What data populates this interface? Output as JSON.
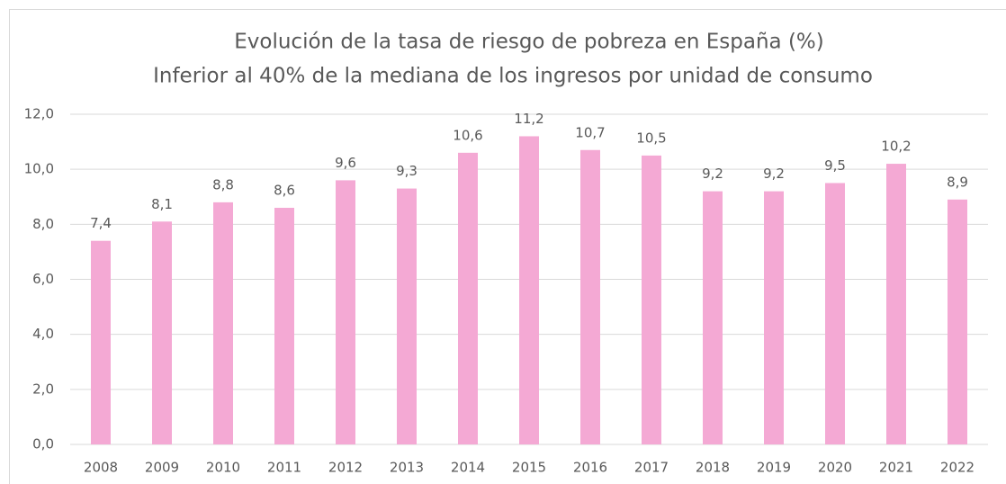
{
  "chart_data": {
    "type": "bar",
    "title": "Evolución de la tasa de riesgo de pobreza en España (%)",
    "subtitle": "Inferior al 40% de la mediana de los ingresos por unidad de consumo",
    "categories": [
      "2008",
      "2009",
      "2010",
      "2011",
      "2012",
      "2013",
      "2014",
      "2015",
      "2016",
      "2017",
      "2018",
      "2019",
      "2020",
      "2021",
      "2022"
    ],
    "values": [
      7.4,
      8.1,
      8.8,
      8.6,
      9.6,
      9.3,
      10.6,
      11.2,
      10.7,
      10.5,
      9.2,
      9.2,
      9.5,
      10.2,
      8.9
    ],
    "value_labels": [
      "7,4",
      "8,1",
      "8,8",
      "8,6",
      "9,6",
      "9,3",
      "10,6",
      "11,2",
      "10,7",
      "10,5",
      "9,2",
      "9,2",
      "9,5",
      "10,2",
      "8,9"
    ],
    "color": "#f4a9d4",
    "ylim": [
      0,
      12
    ],
    "yticks": [
      {
        "value": 0,
        "label": "0,0"
      },
      {
        "value": 2,
        "label": "2,0"
      },
      {
        "value": 4,
        "label": "4,0"
      },
      {
        "value": 6,
        "label": "6,0"
      },
      {
        "value": 8,
        "label": "8,0"
      },
      {
        "value": 10,
        "label": "10,0"
      },
      {
        "value": 12,
        "label": "12,0"
      }
    ],
    "grid": true
  }
}
